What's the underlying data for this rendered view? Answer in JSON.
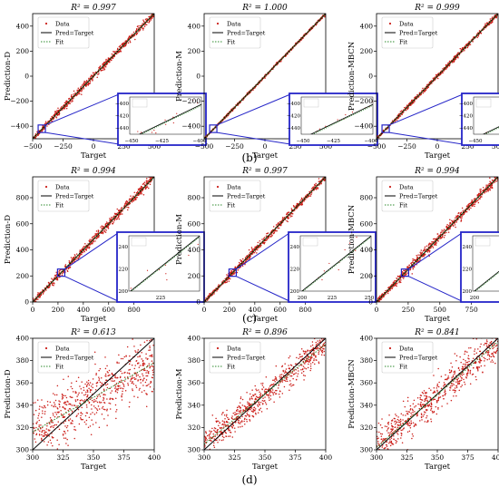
{
  "figure": {
    "row_labels": [
      "(b)",
      "(c)",
      "(d)"
    ],
    "legend_entries": [
      "Data",
      "Pred=Target",
      "Fit"
    ]
  },
  "colors": {
    "data": "#cc1f1a",
    "ideal_line": "#000000",
    "fit_line": "#2e8b2e",
    "zoom_box": "#2525c8"
  },
  "chart_data": [
    {
      "type": "scatter",
      "title": "R² = 0.997",
      "xlabel": "Target",
      "ylabel": "Prediction-D",
      "xlim": [
        -500,
        500
      ],
      "ylim": [
        -500,
        500
      ],
      "xticks": [
        -500,
        -250,
        0,
        250,
        500
      ],
      "yticks": [
        -400,
        -200,
        0,
        200,
        400
      ],
      "xtick_labels": [
        "−500",
        "−250",
        "0",
        "250",
        "500"
      ],
      "ytick_labels": [
        "−400",
        "−200",
        "0",
        "200",
        "400"
      ],
      "spread": 14,
      "n_points": 700,
      "legend": "upper-left",
      "fit": {
        "slope": 1.0,
        "intercept": 0
      },
      "inset": {
        "xlim": [
          -450,
          -400
        ],
        "ylim": [
          -450,
          -390
        ],
        "xticks": [
          -450,
          -425,
          -400
        ],
        "yticks": [
          -400,
          -420,
          -440
        ],
        "xtick_labels": [
          "−450",
          "−425",
          "−400"
        ],
        "ytick_labels": [
          "−400",
          "−420",
          "−440"
        ]
      }
    },
    {
      "type": "scatter",
      "title": "R² = 1.000",
      "xlabel": "Target",
      "ylabel": "Prediction-M",
      "xlim": [
        -500,
        500
      ],
      "ylim": [
        -500,
        500
      ],
      "xticks": [
        -500,
        -250,
        0,
        250,
        500
      ],
      "yticks": [
        -400,
        -200,
        0,
        200,
        400
      ],
      "xtick_labels": [
        "−500",
        "−250",
        "0",
        "250",
        "500"
      ],
      "ytick_labels": [
        "−400",
        "−200",
        "0",
        "200",
        "400"
      ],
      "spread": 5,
      "n_points": 700,
      "legend": "upper-left",
      "fit": {
        "slope": 1.0,
        "intercept": 0
      },
      "inset": {
        "xlim": [
          -450,
          -400
        ],
        "ylim": [
          -450,
          -390
        ],
        "xticks": [
          -450,
          -425,
          -400
        ],
        "yticks": [
          -400,
          -420,
          -440
        ],
        "xtick_labels": [
          "−450",
          "−425",
          "−400"
        ],
        "ytick_labels": [
          "−400",
          "−420",
          "−440"
        ]
      }
    },
    {
      "type": "scatter",
      "title": "R² = 0.999",
      "xlabel": "Target",
      "ylabel": "Prediction-MBCN",
      "xlim": [
        -500,
        500
      ],
      "ylim": [
        -500,
        500
      ],
      "xticks": [
        -500,
        -250,
        0,
        250,
        500
      ],
      "yticks": [
        -400,
        -200,
        0,
        200,
        400
      ],
      "xtick_labels": [
        "−500",
        "−250",
        "0",
        "250",
        "500"
      ],
      "ytick_labels": [
        "−400",
        "−200",
        "0",
        "200",
        "400"
      ],
      "spread": 9,
      "n_points": 700,
      "legend": "upper-left",
      "fit": {
        "slope": 1.0,
        "intercept": 0
      },
      "inset": {
        "xlim": [
          -450,
          -400
        ],
        "ylim": [
          -450,
          -390
        ],
        "xticks": [
          -450,
          -425,
          -400
        ],
        "yticks": [
          -400,
          -420,
          -440
        ],
        "xtick_labels": [
          "−450",
          "−425",
          "−400"
        ],
        "ytick_labels": [
          "−400",
          "−420",
          "−440"
        ]
      }
    },
    {
      "type": "scatter",
      "title": "R² = 0.994",
      "xlabel": "Target",
      "ylabel": "Prediction-D",
      "xlim": [
        0,
        960
      ],
      "ylim": [
        0,
        960
      ],
      "xticks": [
        0,
        200,
        400,
        600,
        800
      ],
      "yticks": [
        0,
        200,
        400,
        600,
        800
      ],
      "xtick_labels": [
        "0",
        "200",
        "400",
        "600",
        "800"
      ],
      "ytick_labels": [
        "0",
        "200",
        "400",
        "600",
        "800"
      ],
      "spread": 18,
      "n_points": 700,
      "legend": "upper-left",
      "fit": {
        "slope": 1.0,
        "intercept": 0
      },
      "inset": {
        "xlim": [
          200,
          250
        ],
        "ylim": [
          200,
          250
        ],
        "xticks": [
          225
        ],
        "yticks": [
          200,
          220,
          240
        ],
        "xtick_labels": [
          "225"
        ],
        "ytick_labels": [
          "200",
          "220",
          "240"
        ]
      }
    },
    {
      "type": "scatter",
      "title": "R² = 0.997",
      "xlabel": "Target",
      "ylabel": "Prediction-M",
      "xlim": [
        0,
        960
      ],
      "ylim": [
        0,
        960
      ],
      "xticks": [
        0,
        200,
        400,
        600,
        800
      ],
      "yticks": [
        0,
        200,
        400,
        600,
        800
      ],
      "xtick_labels": [
        "0",
        "200",
        "400",
        "600",
        "800"
      ],
      "ytick_labels": [
        "0",
        "200",
        "400",
        "600",
        "800"
      ],
      "spread": 13,
      "n_points": 700,
      "legend": "upper-left",
      "fit": {
        "slope": 1.0,
        "intercept": 0
      },
      "inset": {
        "xlim": [
          200,
          250
        ],
        "ylim": [
          200,
          250
        ],
        "xticks": [
          200,
          225,
          250
        ],
        "yticks": [
          200,
          220,
          240
        ],
        "xtick_labels": [
          "200",
          "225",
          "250"
        ],
        "ytick_labels": [
          "200",
          "220",
          "240"
        ]
      }
    },
    {
      "type": "scatter",
      "title": "R² = 0.994",
      "xlabel": "Target",
      "ylabel": "Prediction-MBCN",
      "xlim": [
        0,
        960
      ],
      "ylim": [
        0,
        960
      ],
      "xticks": [
        0,
        250,
        500,
        750
      ],
      "yticks": [
        0,
        200,
        400,
        600,
        800
      ],
      "xtick_labels": [
        "0",
        "250",
        "500",
        "750"
      ],
      "ytick_labels": [
        "0",
        "200",
        "400",
        "600",
        "800"
      ],
      "spread": 18,
      "n_points": 700,
      "legend": "upper-left",
      "fit": {
        "slope": 1.0,
        "intercept": 0
      },
      "inset": {
        "xlim": [
          200,
          250
        ],
        "ylim": [
          200,
          250
        ],
        "xticks": [
          200,
          225,
          250
        ],
        "yticks": [
          200,
          220,
          240
        ],
        "xtick_labels": [
          "200",
          "225",
          "250"
        ],
        "ytick_labels": [
          "200",
          "220",
          "240"
        ]
      }
    },
    {
      "type": "scatter",
      "title": "R² = 0.613",
      "xlabel": "Target",
      "ylabel": "Prediction-D",
      "xlim": [
        300,
        400
      ],
      "ylim": [
        300,
        400
      ],
      "xticks": [
        300,
        325,
        350,
        375,
        400
      ],
      "yticks": [
        300,
        320,
        340,
        360,
        380,
        400
      ],
      "xtick_labels": [
        "300",
        "325",
        "350",
        "375",
        "400"
      ],
      "ytick_labels": [
        "300",
        "320",
        "340",
        "360",
        "380",
        "400"
      ],
      "spread": 13,
      "n_points": 650,
      "legend": "upper-left",
      "fit": {
        "slope": 0.62,
        "intercept": 130
      }
    },
    {
      "type": "scatter",
      "title": "R² = 0.896",
      "xlabel": "Target",
      "ylabel": "Prediction-M",
      "xlim": [
        300,
        400
      ],
      "ylim": [
        300,
        400
      ],
      "xticks": [
        300,
        325,
        350,
        375,
        400
      ],
      "yticks": [
        300,
        320,
        340,
        360,
        380,
        400
      ],
      "xtick_labels": [
        "300",
        "325",
        "350",
        "375",
        "400"
      ],
      "ytick_labels": [
        "300",
        "320",
        "340",
        "360",
        "380",
        "400"
      ],
      "spread": 6.5,
      "n_points": 650,
      "legend": "upper-left",
      "fit": {
        "slope": 0.9,
        "intercept": 35
      }
    },
    {
      "type": "scatter",
      "title": "R² = 0.841",
      "xlabel": "Target",
      "ylabel": "Prediction-MBCN",
      "xlim": [
        300,
        400
      ],
      "ylim": [
        300,
        400
      ],
      "xticks": [
        300,
        325,
        350,
        375,
        400
      ],
      "yticks": [
        300,
        320,
        340,
        360,
        380,
        400
      ],
      "xtick_labels": [
        "300",
        "325",
        "350",
        "375",
        "400"
      ],
      "ytick_labels": [
        "300",
        "320",
        "340",
        "360",
        "380",
        "400"
      ],
      "spread": 8,
      "n_points": 650,
      "legend": "upper-left",
      "fit": {
        "slope": 0.95,
        "intercept": 17
      }
    }
  ]
}
